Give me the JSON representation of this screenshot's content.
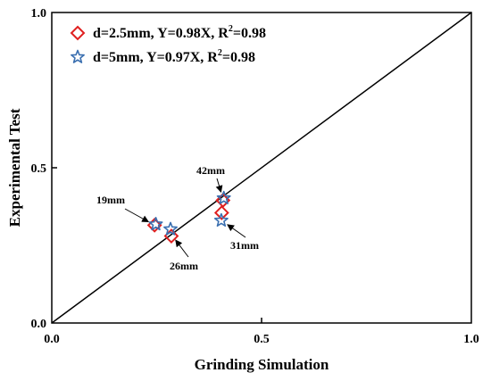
{
  "chart_data": {
    "type": "scatter",
    "xlabel": "Grinding Simulation",
    "ylabel": "Experimental Test",
    "xlim": [
      0,
      1
    ],
    "ylim": [
      0,
      1
    ],
    "xticks": [
      "0.0",
      "0.5",
      "1.0"
    ],
    "yticks": [
      "0.0",
      "0.5",
      "1.0"
    ],
    "grid": false,
    "legend_position": "top-left",
    "reference_line": {
      "x": [
        0,
        1
      ],
      "y": [
        0,
        1
      ]
    },
    "series": [
      {
        "name": "d=2.5mm, Y=0.98X, R",
        "name_sup": "2",
        "name_suffix": "=0.98",
        "marker": "diamond",
        "color": "#e02020",
        "points": [
          {
            "x": 0.245,
            "y": 0.315
          },
          {
            "x": 0.285,
            "y": 0.28
          },
          {
            "x": 0.405,
            "y": 0.355
          },
          {
            "x": 0.408,
            "y": 0.395
          }
        ]
      },
      {
        "name": "d=5mm, Y=0.97X, R",
        "name_sup": "2",
        "name_suffix": "=0.98",
        "marker": "star",
        "color": "#3a6fb0",
        "points": [
          {
            "x": 0.248,
            "y": 0.318
          },
          {
            "x": 0.283,
            "y": 0.302
          },
          {
            "x": 0.404,
            "y": 0.33
          },
          {
            "x": 0.41,
            "y": 0.402
          }
        ]
      }
    ],
    "annotations": [
      {
        "text": "19mm",
        "target": [
          0.245,
          0.315
        ]
      },
      {
        "text": "26mm",
        "target": [
          0.285,
          0.285
        ]
      },
      {
        "text": "31mm",
        "target": [
          0.405,
          0.33
        ]
      },
      {
        "text": "42mm",
        "target": [
          0.408,
          0.4
        ]
      }
    ]
  }
}
